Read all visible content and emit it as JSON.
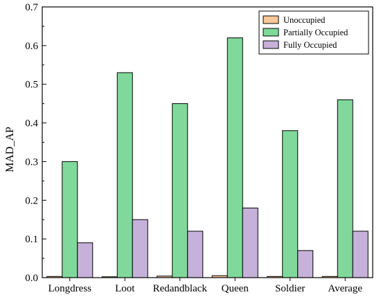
{
  "chart_data": {
    "type": "bar",
    "title": "",
    "xlabel": "",
    "ylabel": "MAD_AP",
    "ylim": [
      0,
      0.7
    ],
    "yticks": [
      0.0,
      0.1,
      0.2,
      0.3,
      0.4,
      0.5,
      0.6,
      0.7
    ],
    "ytick_labels": [
      "0.0",
      "0.1",
      "0.2",
      "0.3",
      "0.4",
      "0.5",
      "0.6",
      "0.7"
    ],
    "categories": [
      "Longdress",
      "Loot",
      "Redandblack",
      "Queen",
      "Soldier",
      "Average"
    ],
    "series": [
      {
        "name": "Unoccupied",
        "color": "#f9c79a",
        "values": [
          0.003,
          0.002,
          0.004,
          0.005,
          0.003,
          0.003
        ]
      },
      {
        "name": "Partially Occupied",
        "color": "#80d99a",
        "values": [
          0.3,
          0.53,
          0.45,
          0.62,
          0.38,
          0.46
        ]
      },
      {
        "name": "Fully Occupied",
        "color": "#c5b1d9",
        "values": [
          0.09,
          0.15,
          0.12,
          0.18,
          0.07,
          0.12
        ]
      }
    ],
    "legend": {
      "position": "top-right"
    },
    "grid": false
  }
}
